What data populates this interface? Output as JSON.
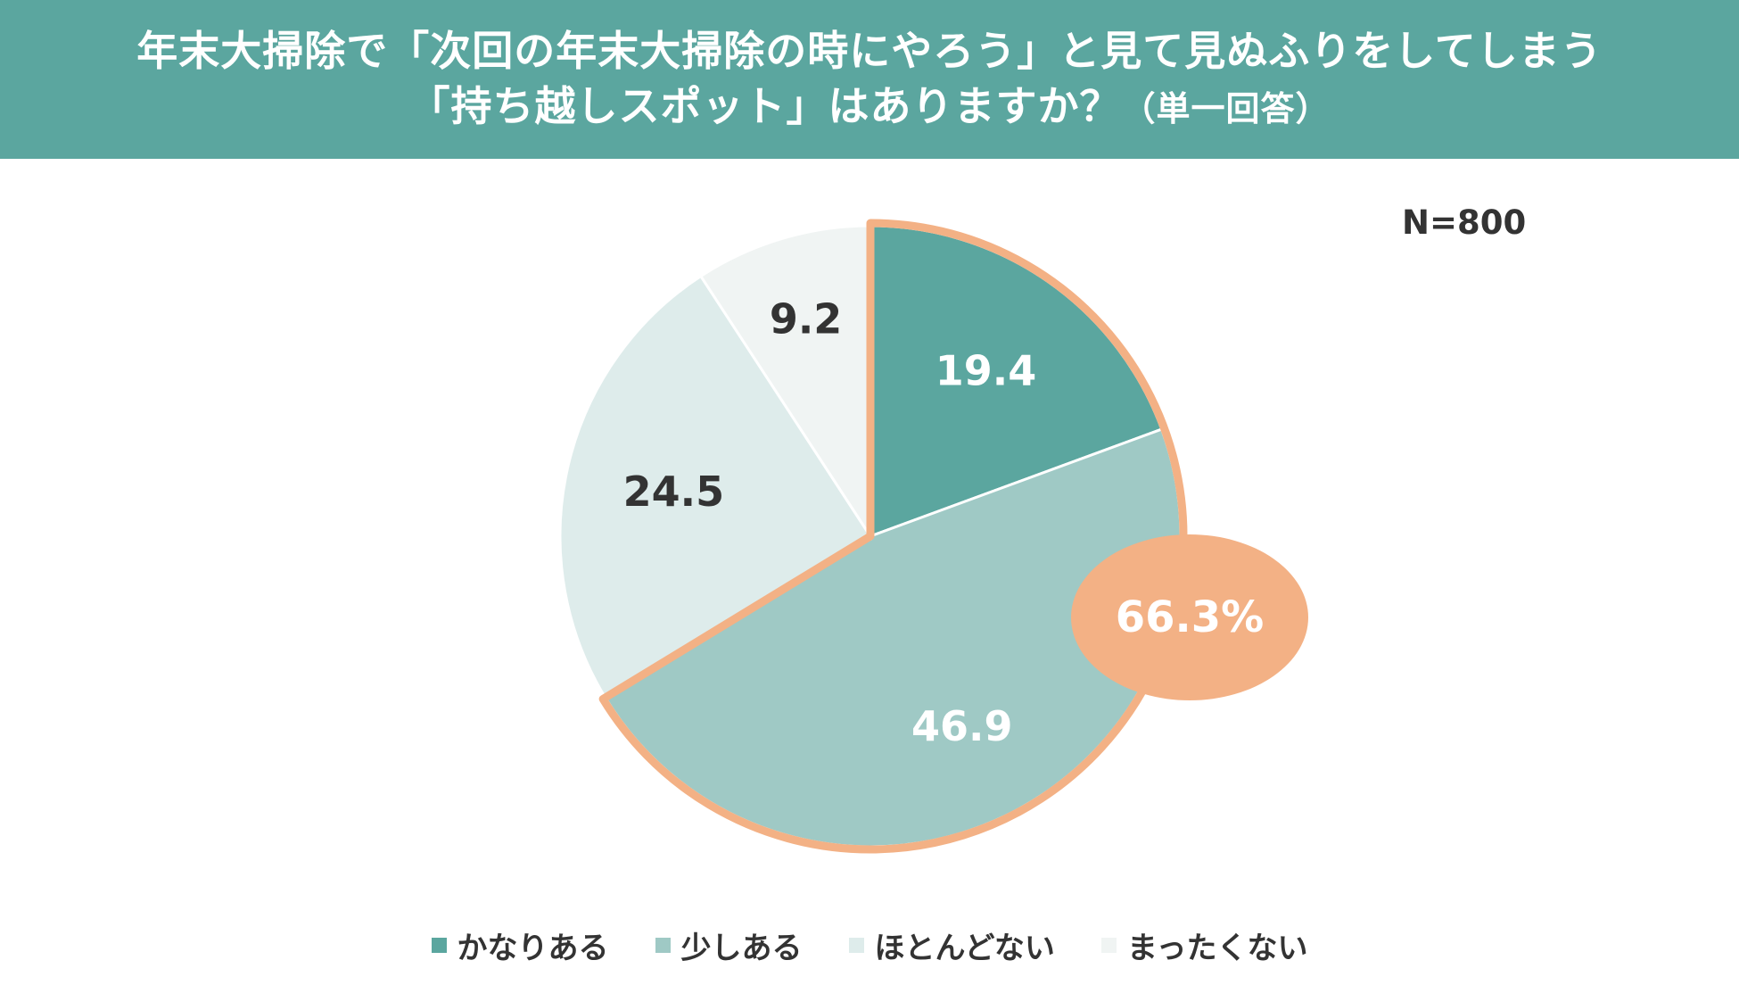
{
  "header": {
    "line1": "年末大掃除で「次回の年末大掃除の時にやろう」と見て見ぬふりをしてしまう",
    "line2_main": "「持ち越しスポット」はありますか？",
    "line2_sub": "（単一回答）"
  },
  "sample_size": "N=800",
  "callout": {
    "value": 66.3,
    "label": "66.3%",
    "color": "#f3b185"
  },
  "chart_data": {
    "type": "pie",
    "title": "年末大掃除で「次回の年末大掃除の時にやろう」と見て見ぬふりをしてしまう「持ち越しスポット」はありますか？（単一回答）",
    "unit": "%",
    "start": "12 o'clock",
    "direction": "clockwise",
    "legend_position": "bottom",
    "highlight": {
      "series": [
        "かなりある",
        "少しある"
      ],
      "total": 66.3,
      "outline_color": "#f3b185"
    },
    "slices": [
      {
        "label": "かなりある",
        "value": 19.4,
        "display": "19.4",
        "color": "#5ba69f",
        "text_color": "#ffffff"
      },
      {
        "label": "少しある",
        "value": 46.9,
        "display": "46.9",
        "color": "#9fc9c5",
        "text_color": "#ffffff"
      },
      {
        "label": "ほとんどない",
        "value": 24.5,
        "display": "24.5",
        "color": "#deeceb",
        "text_color": "#333333"
      },
      {
        "label": "まったくない",
        "value": 9.2,
        "display": "9.2",
        "color": "#f0f4f3",
        "text_color": "#333333"
      }
    ]
  }
}
